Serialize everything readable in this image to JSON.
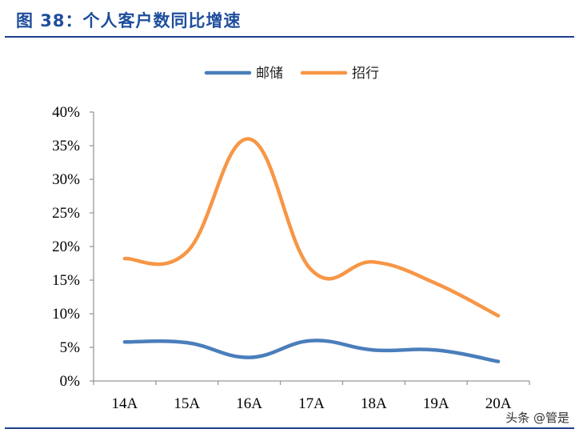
{
  "figure": {
    "title": "图 38：个人客户数同比增速",
    "watermark": "头条 @管是"
  },
  "chart_data": {
    "type": "line",
    "categories": [
      "14A",
      "15A",
      "16A",
      "17A",
      "18A",
      "19A",
      "20A"
    ],
    "series": [
      {
        "name": "邮储",
        "color": "#4a7ebb",
        "values": [
          5.8,
          5.7,
          3.5,
          6.0,
          4.6,
          4.6,
          2.9
        ]
      },
      {
        "name": "招行",
        "color": "#f79646",
        "values": [
          18.2,
          19.2,
          36.0,
          16.5,
          17.7,
          14.5,
          9.7
        ]
      }
    ],
    "ylim": [
      0,
      40
    ],
    "yticks": [
      0,
      5,
      10,
      15,
      20,
      25,
      30,
      35,
      40
    ],
    "ytick_labels": [
      "0%",
      "5%",
      "10%",
      "15%",
      "20%",
      "25%",
      "30%",
      "35%",
      "40%"
    ],
    "legend_position": "top-center",
    "grid": false,
    "smooth": true
  }
}
